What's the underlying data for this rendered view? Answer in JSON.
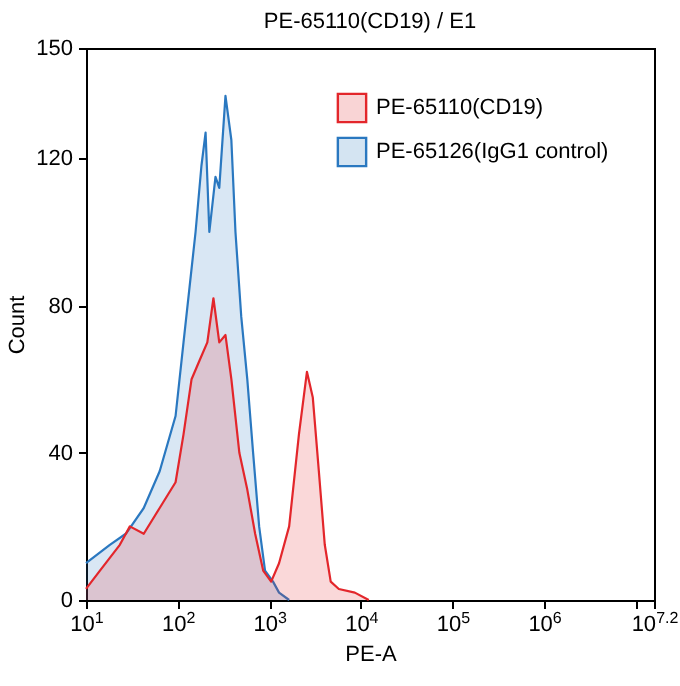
{
  "chart_data": {
    "type": "area",
    "title": "PE-65110(CD19) / E1",
    "xlabel": "PE-A",
    "ylabel": "Count",
    "log": "x",
    "legend": "top right",
    "grid": false,
    "xlim": [
      10,
      15848932
    ],
    "xticks": [
      {
        "value": 10,
        "label": "10$^{1}$"
      },
      {
        "value": 100,
        "label": "10$^{2}$"
      },
      {
        "value": 1000,
        "label": "10$^{3}$"
      },
      {
        "value": 10000,
        "label": "10$^{4}$"
      },
      {
        "value": 100000,
        "label": "10$^{5}$"
      },
      {
        "value": 1000000,
        "label": "10$^{6}$"
      },
      {
        "value": 10000000,
        "label": null
      },
      {
        "value": 15848932,
        "label": "10$^{7.2}$"
      }
    ],
    "ylim": [
      0,
      150
    ],
    "yticks": [
      0,
      40,
      80,
      120,
      150
    ],
    "series": [
      {
        "name": "PE-65110(CD19)",
        "color": "#e3262b",
        "x": [
          10,
          14.2,
          23.4,
          30.1,
          42.7,
          63.7,
          95,
          116,
          142,
          173,
          211,
          246,
          285,
          333,
          386,
          472,
          576,
          702,
          859,
          1050,
          1280,
          1650,
          2110,
          2580,
          2990,
          3480,
          4040,
          4690,
          5750,
          8600,
          12200
        ],
        "values": [
          3,
          8,
          15,
          20,
          18,
          25,
          32,
          45,
          60,
          65,
          70,
          82,
          70,
          72,
          60,
          40,
          30,
          18,
          8,
          5,
          10,
          20,
          45,
          62,
          55,
          35,
          15,
          5,
          3,
          2,
          0
        ]
      },
      {
        "name": "PE-65126(IgG1 control)",
        "color": "#2a78c0",
        "x": [
          10,
          18.2,
          27.2,
          42.7,
          63.7,
          95,
          116,
          135,
          157,
          182,
          202,
          222,
          259,
          285,
          333,
          386,
          428,
          495,
          576,
          667,
          776,
          900,
          1100,
          1280,
          1650
        ],
        "values": [
          10,
          15,
          18,
          25,
          35,
          50,
          70,
          85,
          100,
          118,
          127,
          100,
          115,
          112,
          137,
          125,
          100,
          77,
          60,
          40,
          20,
          8,
          5,
          2,
          0
        ]
      }
    ]
  }
}
